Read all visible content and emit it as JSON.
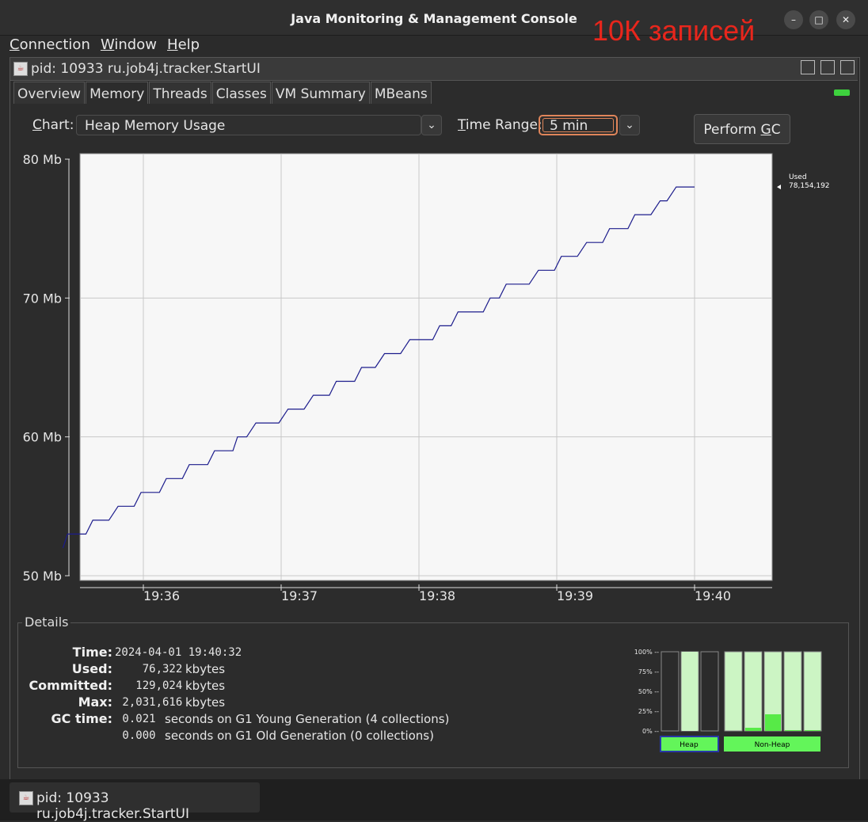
{
  "window": {
    "title": "Java Monitoring & Management Console",
    "overlay": "10К записей"
  },
  "menu": [
    {
      "mnemonic": "C",
      "rest": "onnection"
    },
    {
      "mnemonic": "W",
      "rest": "indow"
    },
    {
      "mnemonic": "H",
      "rest": "elp"
    }
  ],
  "internal_frame": {
    "title": "pid: 10933 ru.job4j.tracker.StartUI"
  },
  "tabs": [
    "Overview",
    "Memory",
    "Threads",
    "Classes",
    "VM Summary",
    "MBeans"
  ],
  "active_tab": "Memory",
  "controls": {
    "chart_label_mnemonic": "C",
    "chart_label_rest": "hart:",
    "chart_value": "Heap Memory Usage",
    "time_range_label_mnemonic": "T",
    "time_range_label_rest": "ime Range:",
    "time_range_value": "5 min",
    "gc_button_prefix": "Perform ",
    "gc_button_mnemonic": "G",
    "gc_button_suffix": "C"
  },
  "chart_data": {
    "type": "line",
    "ylim": [
      50,
      80
    ],
    "y_ticks": [
      {
        "value": 50,
        "label": "50 Mb"
      },
      {
        "value": 60,
        "label": "60 Mb"
      },
      {
        "value": 70,
        "label": "70 Mb"
      },
      {
        "value": 80,
        "label": "80 Mb"
      }
    ],
    "x_ticks": [
      "19:36",
      "19:37",
      "19:38",
      "19:39",
      "19:40"
    ],
    "legend": {
      "label": "Used",
      "value": "78,154,192"
    },
    "series": [
      {
        "name": "Used",
        "color": "#1c1c8c",
        "points": [
          [
            "19:35:25",
            52.0
          ],
          [
            "19:35:27",
            53.0
          ],
          [
            "19:35:35",
            53.0
          ],
          [
            "19:35:38",
            54.0
          ],
          [
            "19:35:45",
            54.0
          ],
          [
            "19:35:49",
            55.0
          ],
          [
            "19:35:56",
            55.0
          ],
          [
            "19:35:59",
            56.0
          ],
          [
            "19:36:07",
            56.0
          ],
          [
            "19:36:10",
            57.0
          ],
          [
            "19:36:17",
            57.0
          ],
          [
            "19:36:20",
            58.0
          ],
          [
            "19:36:28",
            58.0
          ],
          [
            "19:36:31",
            59.0
          ],
          [
            "19:36:39",
            59.0
          ],
          [
            "19:36:41",
            60.0
          ],
          [
            "19:36:45",
            60.0
          ],
          [
            "19:36:49",
            61.0
          ],
          [
            "19:36:59",
            61.0
          ],
          [
            "19:37:03",
            62.0
          ],
          [
            "19:37:10",
            62.0
          ],
          [
            "19:37:14",
            63.0
          ],
          [
            "19:37:21",
            63.0
          ],
          [
            "19:37:24",
            64.0
          ],
          [
            "19:37:32",
            64.0
          ],
          [
            "19:37:35",
            65.0
          ],
          [
            "19:37:41",
            65.0
          ],
          [
            "19:37:45",
            66.0
          ],
          [
            "19:37:52",
            66.0
          ],
          [
            "19:37:56",
            67.0
          ],
          [
            "19:38:06",
            67.0
          ],
          [
            "19:38:09",
            68.0
          ],
          [
            "19:38:14",
            68.0
          ],
          [
            "19:38:17",
            69.0
          ],
          [
            "19:38:28",
            69.0
          ],
          [
            "19:38:31",
            70.0
          ],
          [
            "19:38:35",
            70.0
          ],
          [
            "19:38:38",
            71.0
          ],
          [
            "19:38:48",
            71.0
          ],
          [
            "19:38:52",
            72.0
          ],
          [
            "19:38:59",
            72.0
          ],
          [
            "19:39:02",
            73.0
          ],
          [
            "19:39:09",
            73.0
          ],
          [
            "19:39:13",
            74.0
          ],
          [
            "19:39:20",
            74.0
          ],
          [
            "19:39:23",
            75.0
          ],
          [
            "19:39:31",
            75.0
          ],
          [
            "19:39:34",
            76.0
          ],
          [
            "19:39:41",
            76.0
          ],
          [
            "19:39:45",
            77.0
          ],
          [
            "19:39:48",
            77.0
          ],
          [
            "19:39:52",
            78.0
          ],
          [
            "19:40:00",
            78.0
          ]
        ]
      }
    ],
    "grid": true
  },
  "details": {
    "legend": "Details",
    "rows": [
      {
        "label": "Time:",
        "value": "2024-04-01 19:40:32",
        "text": ""
      },
      {
        "label": "Used:",
        "value": "    76,322",
        "text": "kbytes"
      },
      {
        "label": "Committed:",
        "value": "   129,024",
        "text": "kbytes"
      },
      {
        "label": "Max:",
        "value": " 2,031,616",
        "text": "kbytes"
      },
      {
        "label": "GC time:",
        "value": " 0.021",
        "text": "seconds on G1 Young Generation (4 collections)"
      },
      {
        "label": "",
        "value": " 0.000",
        "text": "seconds on G1 Old Generation (0 collections)"
      }
    ]
  },
  "pools": {
    "y_ticks": [
      "100% --",
      "75% --",
      "50% --",
      "25% --",
      "0% --"
    ],
    "bars": [
      {
        "group": "Heap",
        "fill": 0.0
      },
      {
        "group": "Heap",
        "fill": 1.0
      },
      {
        "group": "Heap",
        "fill": 0.0
      },
      {
        "group": "Non-Heap",
        "fill": 0.0
      },
      {
        "group": "Non-Heap",
        "fill": 0.04
      },
      {
        "group": "Non-Heap",
        "fill": 0.21
      },
      {
        "group": "Non-Heap",
        "fill": 0.01
      },
      {
        "group": "Non-Heap",
        "fill": 0.01
      }
    ],
    "labels": {
      "heap": "Heap",
      "nonheap": "Non-Heap"
    },
    "colors": {
      "bar_fill": "#ccf5c4",
      "bar_used": "#57ea47",
      "label_bg": "#63f55a"
    }
  },
  "taskbar": {
    "item": "pid: 10933 ru.job4j.tracker.StartUI"
  }
}
